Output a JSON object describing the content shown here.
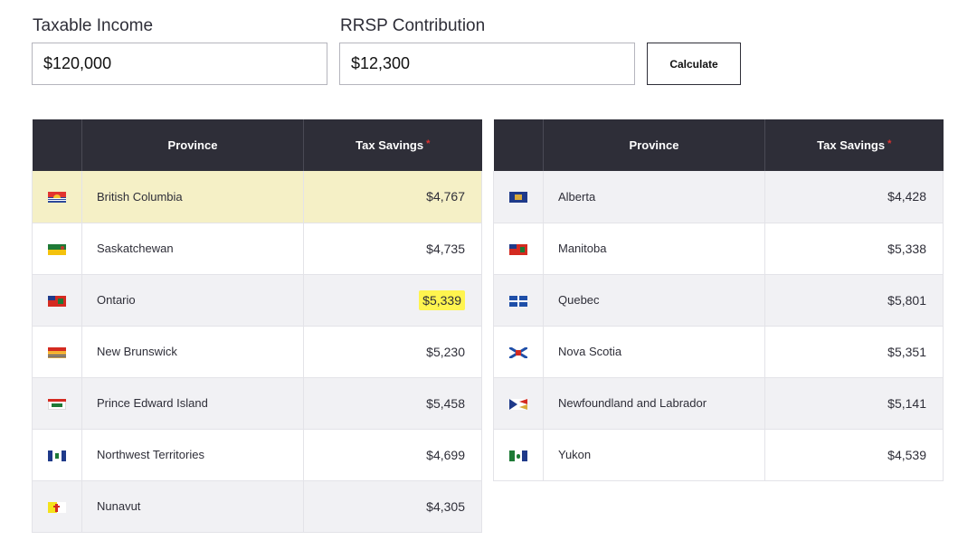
{
  "form": {
    "income_label": "Taxable Income",
    "income_value": "$120,000",
    "rrsp_label": "RRSP Contribution",
    "rrsp_value": "$12,300",
    "calculate_label": "Calculate"
  },
  "table_left": {
    "headers": {
      "province": "Province",
      "tax_savings": "Tax Savings",
      "required_marker": "*"
    },
    "rows": [
      {
        "province": "British Columbia",
        "savings": "$4,767",
        "flag": "bc-flag-icon"
      },
      {
        "province": "Saskatchewan",
        "savings": "$4,735",
        "flag": "sk-flag-icon"
      },
      {
        "province": "Ontario",
        "savings": "$5,339",
        "flag": "on-flag-icon"
      },
      {
        "province": "New Brunswick",
        "savings": "$5,230",
        "flag": "nb-flag-icon"
      },
      {
        "province": "Prince Edward Island",
        "savings": "$5,458",
        "flag": "pe-flag-icon"
      },
      {
        "province": "Northwest Territories",
        "savings": "$4,699",
        "flag": "nt-flag-icon"
      },
      {
        "province": "Nunavut",
        "savings": "$4,305",
        "flag": "nu-flag-icon"
      }
    ]
  },
  "table_right": {
    "headers": {
      "province": "Province",
      "tax_savings": "Tax Savings",
      "required_marker": "*"
    },
    "rows": [
      {
        "province": "Alberta",
        "savings": "$4,428",
        "flag": "ab-flag-icon"
      },
      {
        "province": "Manitoba",
        "savings": "$5,338",
        "flag": "mb-flag-icon"
      },
      {
        "province": "Quebec",
        "savings": "$5,801",
        "flag": "qc-flag-icon"
      },
      {
        "province": "Nova Scotia",
        "savings": "$5,351",
        "flag": "ns-flag-icon"
      },
      {
        "province": "Newfoundland and Labrador",
        "savings": "$5,141",
        "flag": "nl-flag-icon"
      },
      {
        "province": "Yukon",
        "savings": "$4,539",
        "flag": "yt-flag-icon"
      }
    ]
  },
  "colors": {
    "header_bg": "#2e2e38",
    "row_highlight": "#f5f0c6",
    "value_highlight": "#fff44f",
    "required_marker": "#e0312f"
  }
}
